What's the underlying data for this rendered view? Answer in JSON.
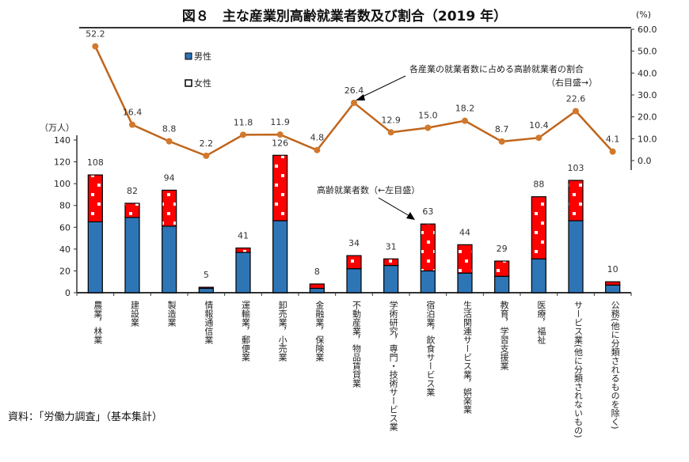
{
  "title": "図８　主な産業別高齢就業者数及び割合（2019 年）",
  "source": "資料：「労働力調査」（基本集計）",
  "chart_data": {
    "type": "bar+line",
    "title": "図８　主な産業別高齢就業者数及び割合（2019 年）",
    "categories": [
      "農業，林業",
      "建設業",
      "製造業",
      "情報通信業",
      "運輸業，郵便業",
      "卸売業，小売業",
      "金融業，保険業",
      "不動産業，物品賃貸業",
      "学術研究，専門・技術サービス業",
      "宿泊業，飲食サービス業",
      "生活関連サービス業，娯楽業",
      "教育，学習支援業",
      "医療，福祉",
      "サービス業(他に分類されないもの)",
      "公務(他に分類されるものを除く)"
    ],
    "left_axis": {
      "unit_label": "（万人）",
      "ylim": [
        0,
        140
      ],
      "ticks": [
        "0",
        "20",
        "40",
        "60",
        "80",
        "100",
        "120",
        "140"
      ]
    },
    "right_axis": {
      "unit_label": "(%)",
      "ylim": [
        0,
        60
      ],
      "ticks": [
        "0.0",
        "10.0",
        "20.0",
        "30.0",
        "40.0",
        "50.0",
        "60.0"
      ]
    },
    "series": [
      {
        "name": "男性",
        "type": "stacked-bar",
        "color": "#2e75b6",
        "values": [
          65,
          69,
          61,
          4,
          37,
          66,
          4,
          22,
          25,
          20,
          18,
          15,
          31,
          66,
          7
        ]
      },
      {
        "name": "女性",
        "type": "stacked-bar",
        "color": "#ff0000",
        "pattern": "white-dots",
        "values": [
          43,
          13,
          33,
          1,
          4,
          60,
          4,
          12,
          6,
          43,
          26,
          14,
          57,
          37,
          3
        ]
      },
      {
        "name": "各産業の就業者数に占める高齢就業者の割合",
        "type": "line",
        "axis": "right",
        "color": "#c0651b",
        "values": [
          52.2,
          16.4,
          8.8,
          2.2,
          11.8,
          11.9,
          4.8,
          26.4,
          12.9,
          15.0,
          18.2,
          8.7,
          10.4,
          22.6,
          4.1
        ]
      }
    ],
    "total_labels": [
      "108",
      "82",
      "94",
      "5",
      "41",
      "126",
      "8",
      "34",
      "31",
      "63",
      "44",
      "29",
      "88",
      "103",
      "10"
    ],
    "line_labels": [
      "52.2",
      "16.4",
      "8.8",
      "2.2",
      "11.8",
      "11.9",
      "4.8",
      "26.4",
      "12.9",
      "15.0",
      "18.2",
      "8.7",
      "10.4",
      "22.6",
      "4.1"
    ],
    "legend": {
      "placement": "top-left",
      "items": [
        "男性",
        "女性"
      ]
    },
    "annotations": {
      "line_note_1": "各産業の就業者数に占める高齢就業者の割合",
      "line_note_2": "（右目盛→）",
      "bar_note": "高齢就業者数（←左目盛）"
    },
    "grid": false
  }
}
